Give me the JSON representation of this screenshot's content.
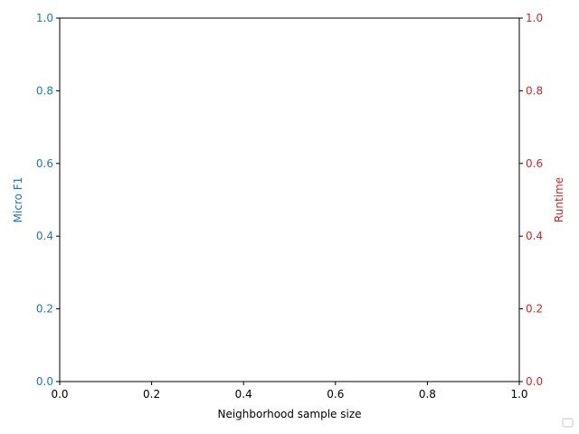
{
  "chart_data": {
    "type": "line",
    "xlabel": "Neighborhood sample size",
    "ylabel_left": "Micro F1",
    "ylabel_right": "Runtime",
    "xlim": [
      0.0,
      1.0
    ],
    "ylim_left": [
      0.0,
      1.0
    ],
    "ylim_right": [
      0.0,
      1.0
    ],
    "x_ticks": [
      "0.0",
      "0.2",
      "0.4",
      "0.6",
      "0.8",
      "1.0"
    ],
    "y_ticks_left": [
      "0.0",
      "0.2",
      "0.4",
      "0.6",
      "0.8",
      "1.0"
    ],
    "y_ticks_right": [
      "0.0",
      "0.2",
      "0.4",
      "0.6",
      "0.8",
      "1.0"
    ],
    "series": [],
    "legend": {
      "placement": "bottom-right",
      "entries": []
    },
    "grid": false,
    "colors": {
      "left_axis": "#1f77b4",
      "right_axis": "#d62728",
      "frame": "#000000",
      "text": "#000000"
    }
  }
}
